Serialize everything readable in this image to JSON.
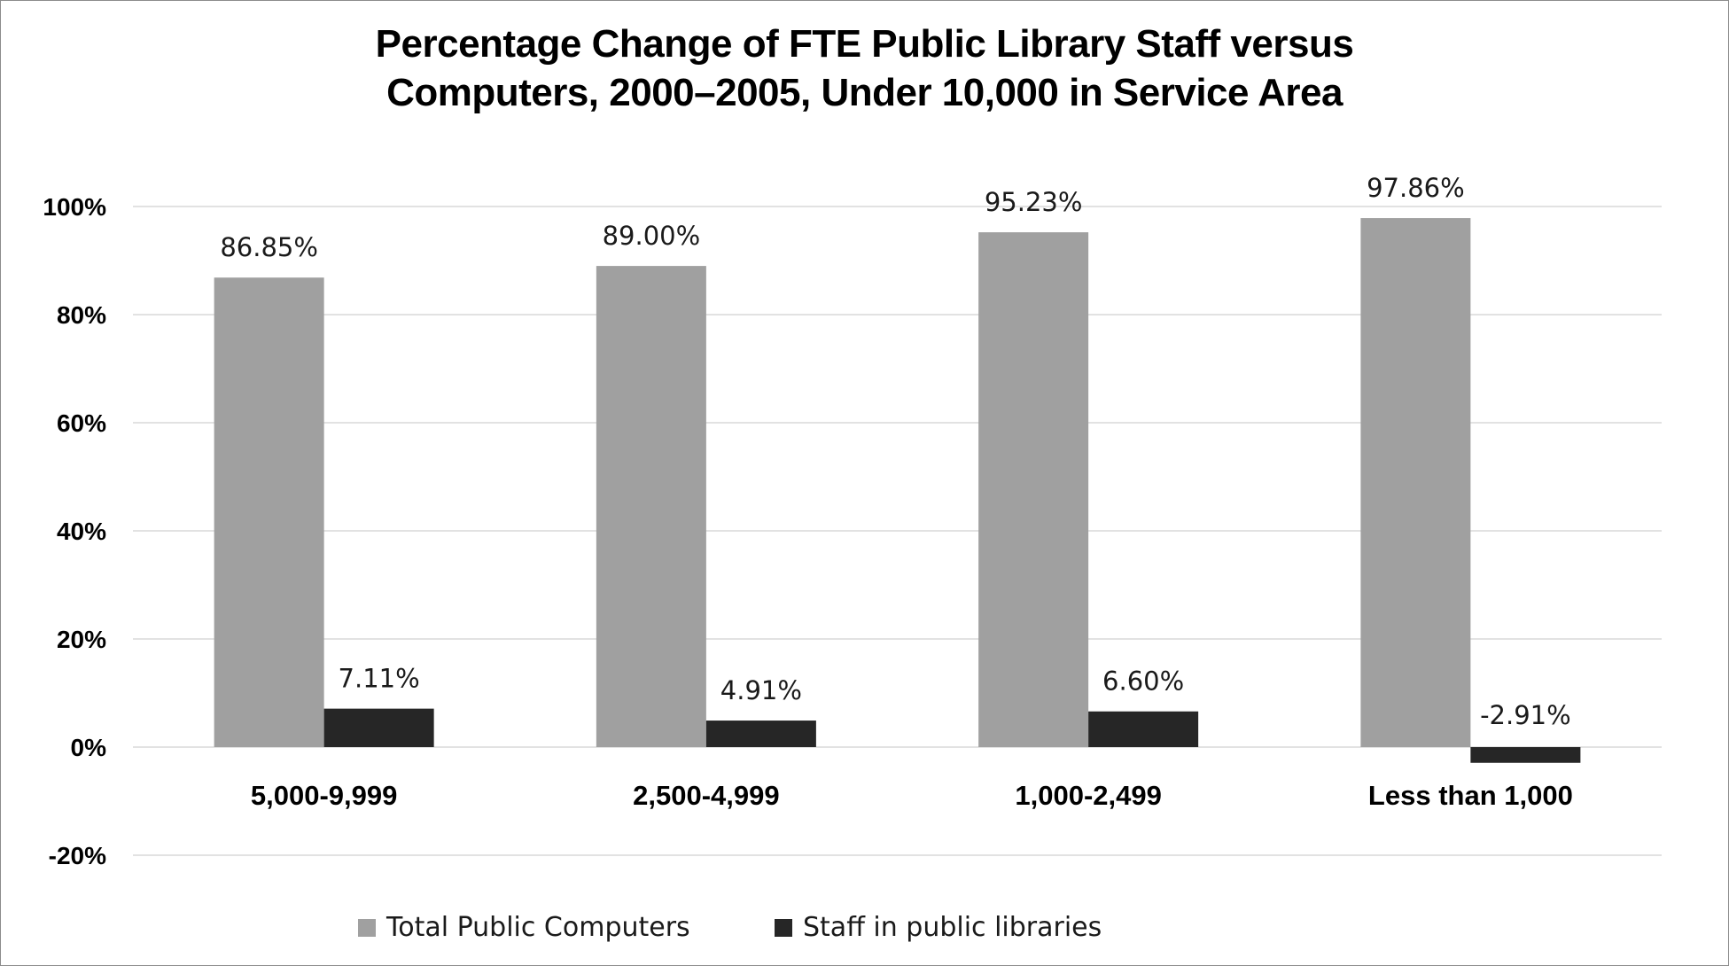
{
  "chart_data": {
    "type": "bar",
    "title_lines": [
      "Percentage Change of FTE Public Library Staff versus",
      "Computers, 2000–2005, Under 10,000 in Service Area"
    ],
    "categories": [
      "5,000-9,999",
      "2,500-4,999",
      "1,000-2,499",
      "Less than 1,000"
    ],
    "series": [
      {
        "name": "Total Public Computers",
        "values": [
          86.85,
          89.0,
          95.23,
          97.86
        ],
        "labels": [
          "86.85%",
          "89.00%",
          "95.23%",
          "97.86%"
        ],
        "color": "#a0a0a0"
      },
      {
        "name": "Staff in public libraries",
        "values": [
          7.11,
          4.91,
          6.6,
          -2.91
        ],
        "labels": [
          "7.11%",
          "4.91%",
          "6.60%",
          "-2.91%"
        ],
        "color": "#262626"
      }
    ],
    "yticks": [
      -20,
      0,
      20,
      40,
      60,
      80,
      100
    ],
    "ytick_labels": [
      "-20%",
      "0%",
      "20%",
      "40%",
      "60%",
      "80%",
      "100%"
    ],
    "ylim": [
      -20,
      100
    ],
    "grid": true,
    "legend_position": "bottom",
    "gridline_color": "#d9d9d9"
  }
}
